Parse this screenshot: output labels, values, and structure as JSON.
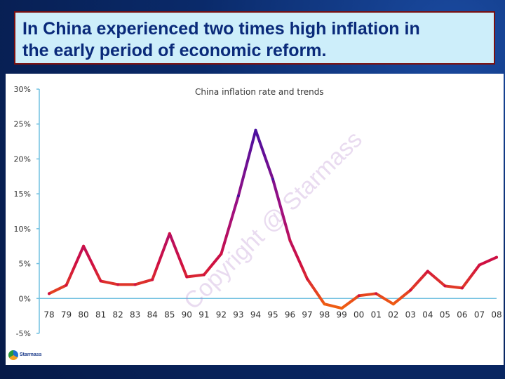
{
  "slide": {
    "title_line1": "In China experienced two times high inflation in",
    "title_line2": "the early period of economic reform."
  },
  "watermark": "Copyright @ Starmass",
  "logo_text": "Starmass",
  "chart_data": {
    "type": "line",
    "title": "China inflation rate and trends",
    "categories": [
      "78",
      "79",
      "80",
      "81",
      "82",
      "83",
      "84",
      "85",
      "90",
      "91",
      "92",
      "93",
      "94",
      "95",
      "96",
      "97",
      "98",
      "99",
      "00",
      "01",
      "02",
      "03",
      "04",
      "05",
      "06",
      "07",
      "08"
    ],
    "values": [
      0.7,
      1.9,
      7.5,
      2.5,
      2.0,
      2.0,
      2.7,
      9.3,
      3.1,
      3.4,
      6.4,
      14.7,
      24.1,
      17.1,
      8.3,
      2.8,
      -0.8,
      -1.4,
      0.4,
      0.7,
      -0.8,
      1.2,
      3.9,
      1.8,
      1.5,
      4.8,
      5.9
    ],
    "yticks": [
      "30%",
      "25%",
      "20%",
      "15%",
      "10%",
      "5%",
      "0%",
      "-5%"
    ],
    "ytick_values": [
      30,
      25,
      20,
      15,
      10,
      5,
      0,
      -5
    ],
    "ylim": [
      -5,
      30
    ],
    "grid": false,
    "colors": {
      "high": "#4a10a0",
      "mid": "#d01040",
      "low": "#f06010",
      "axis": "#70c0e0",
      "tick_text": "#333333"
    }
  }
}
